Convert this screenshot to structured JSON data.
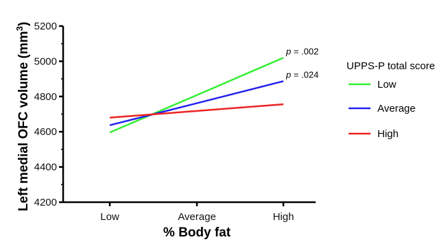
{
  "chart_data": {
    "type": "line",
    "title": "",
    "xlabel": "% Body fat",
    "ylabel": "Left  medial OFC volume (mm³)",
    "ylabel_main": "Left  medial OFC volume (mm",
    "ylabel_sup": "3",
    "ylabel_close": ")",
    "categories": [
      "Low",
      "Average",
      "High"
    ],
    "ylim": [
      4200,
      5200
    ],
    "yticks": [
      "4200",
      "4400",
      "4600",
      "4800",
      "5000",
      "5200"
    ],
    "grid": false,
    "legend": {
      "title": "UPPS-P total score",
      "placement": "right"
    },
    "series": [
      {
        "name": "Low",
        "color": "#33ee33",
        "values": [
          4596,
          4808,
          5020
        ]
      },
      {
        "name": "Average",
        "color": "#2222ee",
        "values": [
          4637,
          4762,
          4887
        ]
      },
      {
        "name": "High",
        "color": "#ee2222",
        "values": [
          4680,
          4718,
          4756
        ]
      }
    ],
    "annotations": [
      {
        "series": "Low",
        "italic": "p",
        "text": " = .002"
      },
      {
        "series": "Average",
        "italic": "p",
        "text": " = .024"
      }
    ]
  }
}
